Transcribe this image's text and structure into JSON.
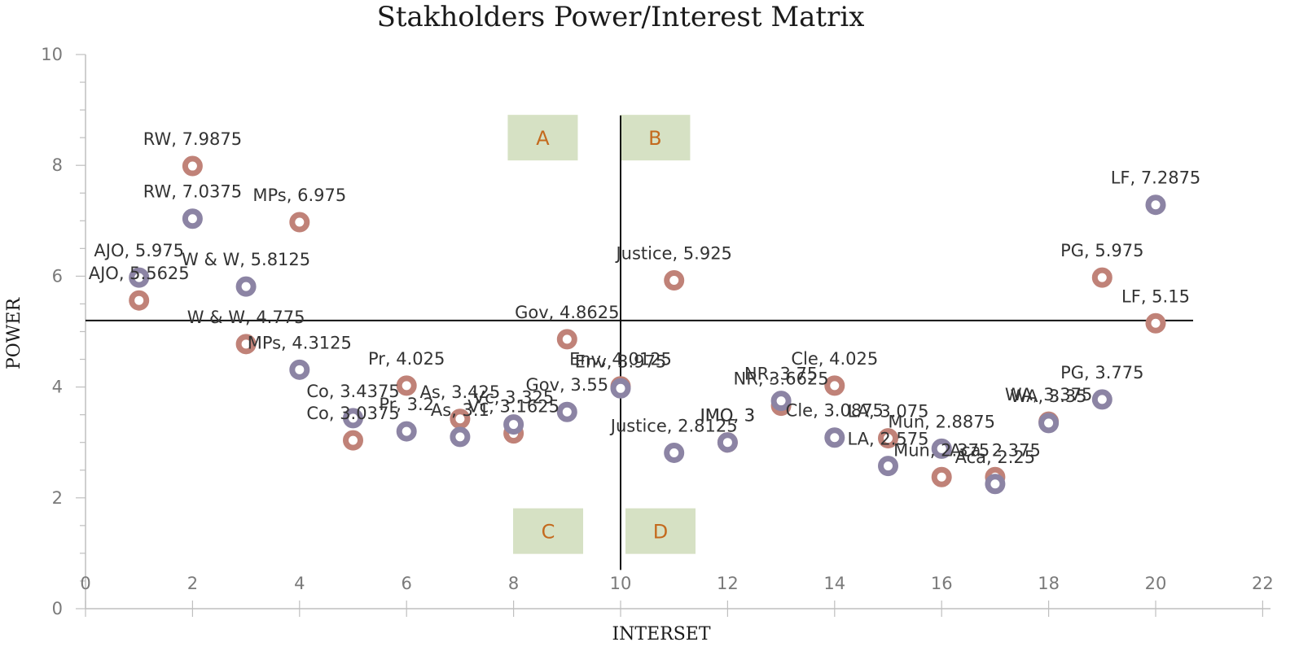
{
  "chart_data": {
    "type": "scatter",
    "title": "Stakholders Power/Interest Matrix",
    "xlabel": "INTERSET",
    "ylabel": "POWER",
    "xlim": [
      0,
      22
    ],
    "ylim": [
      0,
      10
    ],
    "xticks": [
      "0",
      "2",
      "4",
      "6",
      "8",
      "10",
      "12",
      "14",
      "16",
      "18",
      "20",
      "22"
    ],
    "yticks": [
      "0",
      "2",
      "4",
      "6",
      "8",
      "10"
    ],
    "dividers": {
      "x": 10,
      "y": 5.2
    },
    "quadrants": [
      {
        "label": "A",
        "x": 8.5,
        "y": 8.5
      },
      {
        "label": "B",
        "x": 10.6,
        "y": 8.5
      },
      {
        "label": "C",
        "x": 8.6,
        "y": 1.4
      },
      {
        "label": "D",
        "x": 10.7,
        "y": 1.4
      }
    ],
    "colors": {
      "series_red": "#c08278",
      "series_purple": "#8c84a4",
      "quadrant_fill": "#d6e1c4",
      "quadrant_text": "#c46a1e"
    },
    "series": [
      {
        "points": [
          {
            "x": 2,
            "y": 7.9875,
            "label": "RW, 7.9875"
          },
          {
            "x": 4,
            "y": 6.975,
            "label": "MPs, 6.975"
          },
          {
            "x": 1,
            "y": 5.5625,
            "label": "AJO, 5.5625"
          },
          {
            "x": 3,
            "y": 4.775,
            "label": "W & W, 4.775"
          },
          {
            "x": 6,
            "y": 4.025,
            "label": "Pr, 4.025"
          },
          {
            "x": 7,
            "y": 3.425,
            "label": "As, 3.425"
          },
          {
            "x": 5,
            "y": 3.0375,
            "label": "Co, 3.0375"
          },
          {
            "x": 8,
            "y": 3.1625,
            "label": "Vc, 3.1625"
          },
          {
            "x": 9,
            "y": 4.8625,
            "label": "Gov, 4.8625"
          },
          {
            "x": 10,
            "y": 4.0125,
            "label": "Env, 4.0125"
          },
          {
            "x": 11,
            "y": 5.925,
            "label": "Justice, 5.925"
          },
          {
            "x": 12,
            "y": 3.0,
            "label": "IMO, 3"
          },
          {
            "x": 13,
            "y": 3.6625,
            "label": "NR, 3.6625"
          },
          {
            "x": 14,
            "y": 4.025,
            "label": "Cle, 4.025"
          },
          {
            "x": 15,
            "y": 3.075,
            "label": "LA, 3.075"
          },
          {
            "x": 16,
            "y": 2.375,
            "label": "Mun, 2.375"
          },
          {
            "x": 17,
            "y": 2.375,
            "label": "Aca, 2.375"
          },
          {
            "x": 18,
            "y": 3.375,
            "label": "WA, 3.375"
          },
          {
            "x": 19,
            "y": 5.975,
            "label": "PG, 5.975"
          },
          {
            "x": 20,
            "y": 5.15,
            "label": "LF, 5.15"
          }
        ]
      },
      {
        "points": [
          {
            "x": 2,
            "y": 7.0375,
            "label": "RW, 7.0375"
          },
          {
            "x": 1,
            "y": 5.975,
            "label": "AJO, 5.975"
          },
          {
            "x": 3,
            "y": 5.8125,
            "label": "W & W, 5.8125"
          },
          {
            "x": 4,
            "y": 4.3125,
            "label": "MPs, 4.3125"
          },
          {
            "x": 5,
            "y": 3.4375,
            "label": "Co, 3.4375"
          },
          {
            "x": 6,
            "y": 3.2,
            "label": "Pr, 3.2"
          },
          {
            "x": 7,
            "y": 3.1,
            "label": "As, 3.1"
          },
          {
            "x": 8,
            "y": 3.325,
            "label": "Vc, 3.325"
          },
          {
            "x": 9,
            "y": 3.55,
            "label": "Gov, 3.55"
          },
          {
            "x": 10,
            "y": 3.975,
            "label": "Env, 3.975"
          },
          {
            "x": 11,
            "y": 2.8125,
            "label": "Justice, 2.8125"
          },
          {
            "x": 12,
            "y": 3.0,
            "label": "IMO, 3"
          },
          {
            "x": 13,
            "y": 3.75,
            "label": "NR, 3.75"
          },
          {
            "x": 14,
            "y": 3.0875,
            "label": "Cle, 3.0875"
          },
          {
            "x": 15,
            "y": 2.575,
            "label": "LA, 2.575"
          },
          {
            "x": 16,
            "y": 2.8875,
            "label": "Mun, 2.8875"
          },
          {
            "x": 17,
            "y": 2.25,
            "label": "Aca, 2.25"
          },
          {
            "x": 18,
            "y": 3.35,
            "label": "WA, 3.35"
          },
          {
            "x": 19,
            "y": 3.775,
            "label": "PG, 3.775"
          },
          {
            "x": 20,
            "y": 7.2875,
            "label": "LF, 7.2875"
          }
        ]
      }
    ]
  }
}
